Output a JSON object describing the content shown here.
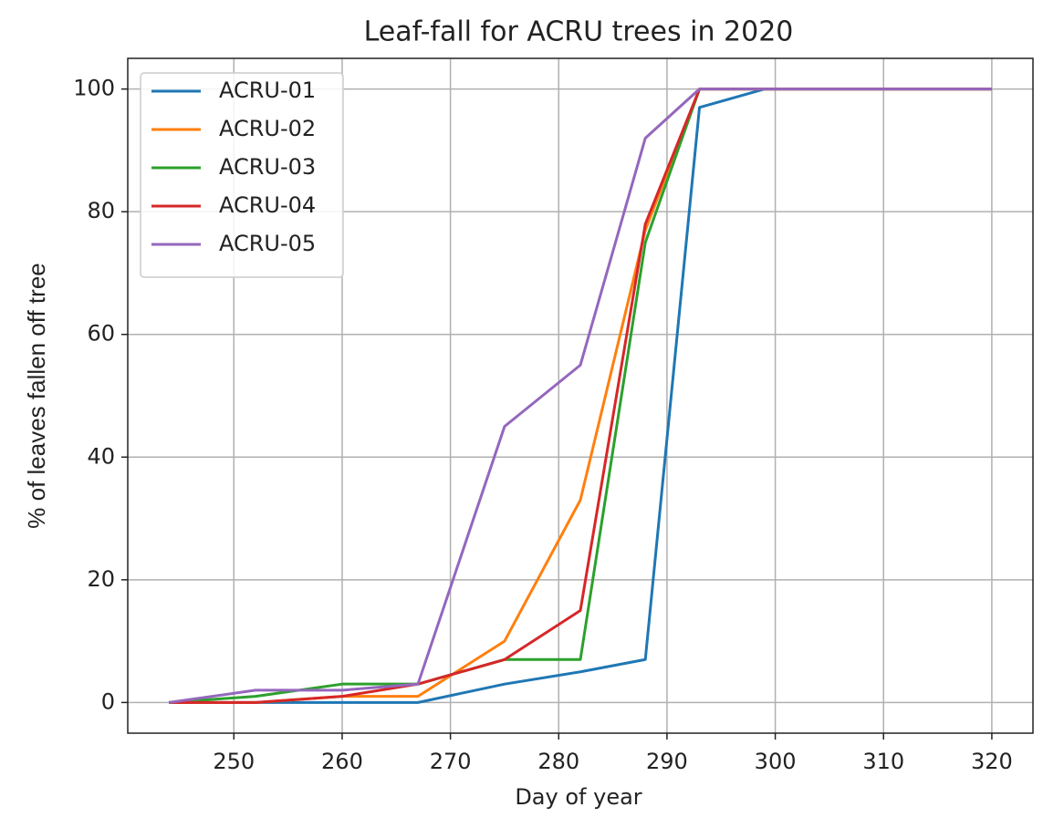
{
  "chart_data": {
    "type": "line",
    "title": "Leaf-fall for ACRU trees in 2020",
    "x_label": "Day of year",
    "y_label": "% of leaves fallen off tree",
    "x": [
      244,
      252,
      260,
      267,
      275,
      282,
      288,
      293,
      299,
      320
    ],
    "series": [
      {
        "name": "ACRU-01",
        "color": "#1f77b4",
        "values": [
          0,
          0,
          0,
          0,
          3,
          5,
          7,
          97,
          100,
          100
        ]
      },
      {
        "name": "ACRU-02",
        "color": "#ff7f0e",
        "values": [
          0,
          0,
          1,
          1,
          10,
          33,
          77,
          100,
          100,
          100
        ]
      },
      {
        "name": "ACRU-03",
        "color": "#2ca02c",
        "values": [
          0,
          1,
          3,
          3,
          7,
          7,
          75,
          100,
          100,
          100
        ]
      },
      {
        "name": "ACRU-04",
        "color": "#d62728",
        "values": [
          0,
          0,
          1,
          3,
          7,
          15,
          78,
          100,
          100,
          100
        ]
      },
      {
        "name": "ACRU-05",
        "color": "#9467bd",
        "values": [
          0,
          2,
          2,
          3,
          45,
          55,
          92,
          100,
          100,
          100
        ]
      }
    ],
    "xlim": [
      240.2,
      323.8
    ],
    "ylim": [
      -5,
      105
    ],
    "xticks": [
      250,
      260,
      270,
      280,
      290,
      300,
      310,
      320
    ],
    "yticks": [
      0,
      20,
      40,
      60,
      80,
      100
    ],
    "grid": true,
    "legend": "upper-left"
  }
}
